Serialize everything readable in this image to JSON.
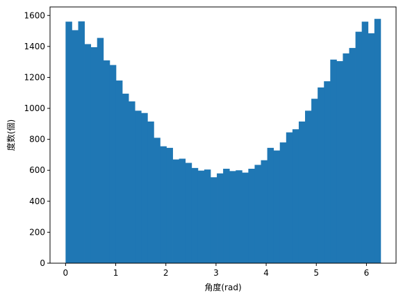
{
  "chart_data": {
    "type": "bar",
    "title": "",
    "xlabel": "角度(rad)",
    "ylabel": "度数(個)",
    "xlim": [
      -0.31,
      6.59
    ],
    "ylim": [
      0,
      1655
    ],
    "grid": false,
    "bar_color": "#1f77b4",
    "x_ticks": [
      0,
      1,
      2,
      3,
      4,
      5,
      6
    ],
    "y_ticks": [
      0,
      200,
      400,
      600,
      800,
      1000,
      1200,
      1400,
      1600
    ],
    "bin_start": 0,
    "bin_end": 6.2832,
    "bin_count": 50,
    "values": [
      1560,
      1505,
      1562,
      1415,
      1395,
      1455,
      1310,
      1280,
      1180,
      1095,
      1045,
      985,
      970,
      915,
      810,
      755,
      745,
      670,
      675,
      648,
      615,
      598,
      605,
      555,
      580,
      610,
      595,
      600,
      585,
      610,
      635,
      665,
      745,
      728,
      780,
      845,
      865,
      915,
      985,
      1062,
      1135,
      1175,
      1315,
      1305,
      1355,
      1390,
      1495,
      1560,
      1485,
      1578
    ]
  }
}
